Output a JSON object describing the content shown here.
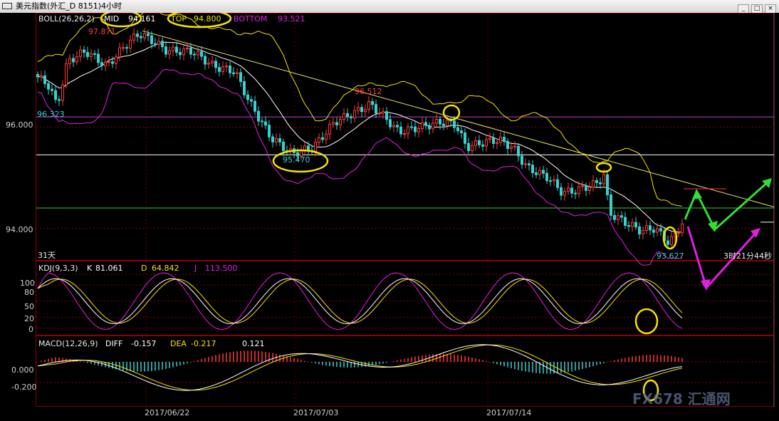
{
  "window": {
    "title": "美元指数(外汇_D 8151)4小时"
  },
  "chart_data": [
    {
      "type": "candlestick",
      "panel": "price",
      "indicator": {
        "label": "BOLL(26,26,2)",
        "items": [
          {
            "name": "MID",
            "value": "94.161",
            "color": "#ffffff"
          },
          {
            "name": "TOP",
            "value": "94.800",
            "color": "#f4e400"
          },
          {
            "name": "BOTTOM",
            "value": "93.521",
            "color": "#e020e0"
          }
        ]
      },
      "y_ticks": [
        "96.000",
        "94.000"
      ],
      "ylim": [
        93.4,
        98.2
      ],
      "annotations": {
        "high_label": "97.871",
        "low_label_left": "96.323",
        "swing_low": "95.470",
        "swing_high": "96.512",
        "recent_low": "93.627"
      },
      "horizontal_lines": [
        {
          "value": 96.2,
          "color": "#c040c0"
        },
        {
          "value": 95.45,
          "color": "#ffffff"
        },
        {
          "value": 94.4,
          "color": "#33cc33"
        }
      ],
      "period_label": "31天",
      "countdown": "3时21分44秒",
      "colors": {
        "up": "#ff3b3b",
        "down": "#3ad0d0"
      }
    },
    {
      "type": "line",
      "panel": "kdj",
      "indicator": {
        "label": "KDJ(9,3,3)",
        "items": [
          {
            "name": "K",
            "value": "81.061",
            "color": "#ffffff"
          },
          {
            "name": "D",
            "value": "64.842",
            "color": "#f4e400"
          },
          {
            "name": "J",
            "value": "113.500",
            "color": "#e020e0"
          }
        ]
      },
      "y_ticks": [
        "100",
        "80",
        "50",
        "20",
        "0"
      ],
      "ylim": [
        -10,
        120
      ]
    },
    {
      "type": "bar",
      "panel": "macd",
      "indicator": {
        "label": "MACD(12,26,9)",
        "items": [
          {
            "name": "DIFF",
            "value": "-0.157",
            "color": "#ffffff"
          },
          {
            "name": "DEA",
            "value": "-0.217",
            "color": "#f4e400"
          },
          {
            "name": "",
            "value": "0.121",
            "color": "#ffffff"
          }
        ]
      },
      "y_ticks": [
        "0.000",
        "-0.200"
      ],
      "ylim": [
        -0.42,
        0.22
      ]
    }
  ],
  "x_ticks": [
    "2017/06/22",
    "2017/07/03",
    "2017/07/14"
  ],
  "watermark": "FX678 汇通网"
}
